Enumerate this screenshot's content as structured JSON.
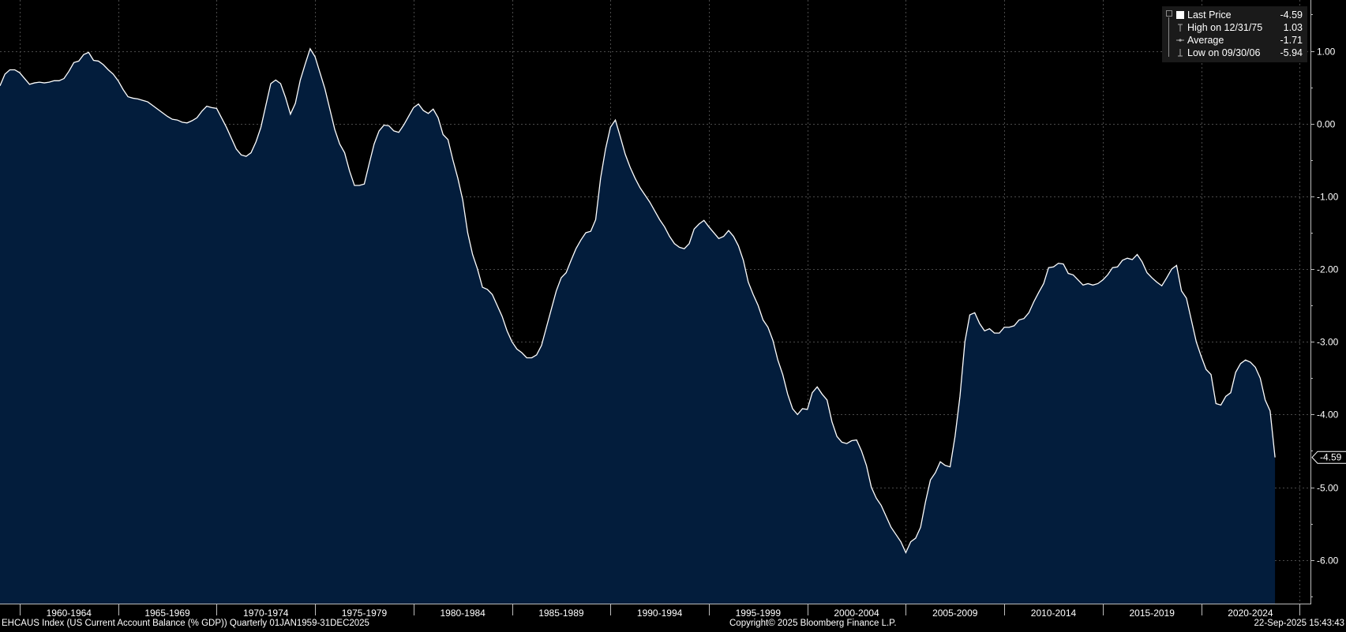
{
  "chart_data": {
    "type": "area",
    "ticker": "EHCAUS Index",
    "ylim": [
      -6.6,
      1.7
    ],
    "xlim": [
      1959.0,
      2025.55
    ],
    "y_ticks": [
      1,
      0,
      -1,
      -2,
      -3,
      -4,
      -5,
      -6
    ],
    "y_tick_labels": [
      "1.00",
      "0.00",
      "-1.00",
      "-2.00",
      "-3.00",
      "-4.00",
      "-5.00",
      "-6.00"
    ],
    "x_period_labels": [
      {
        "label": "1960-1964",
        "start": 1960,
        "end": 1965
      },
      {
        "label": "1965-1969",
        "start": 1965,
        "end": 1970
      },
      {
        "label": "1970-1974",
        "start": 1970,
        "end": 1975
      },
      {
        "label": "1975-1979",
        "start": 1975,
        "end": 1980
      },
      {
        "label": "1980-1984",
        "start": 1980,
        "end": 1985
      },
      {
        "label": "1985-1989",
        "start": 1985,
        "end": 1990
      },
      {
        "label": "1990-1994",
        "start": 1990,
        "end": 1995
      },
      {
        "label": "1995-1999",
        "start": 1995,
        "end": 2000
      },
      {
        "label": "2000-2004",
        "start": 2000,
        "end": 2005
      },
      {
        "label": "2005-2009",
        "start": 2005,
        "end": 2010
      },
      {
        "label": "2010-2014",
        "start": 2010,
        "end": 2015
      },
      {
        "label": "2015-2019",
        "start": 2015,
        "end": 2020
      },
      {
        "label": "2020-2024",
        "start": 2020,
        "end": 2025
      }
    ],
    "grid": true,
    "legend_position": "top-right",
    "last_value_label": "-4.59",
    "colors": {
      "background": "#000000",
      "fill": "#031d3c",
      "line": "#ffffff",
      "grid": "#4a4a4a",
      "legend_bg": "#1a1a1a"
    },
    "series": [
      {
        "name": "Last Price",
        "points": [
          [
            1959.0,
            0.52
          ],
          [
            1959.25,
            0.68
          ],
          [
            1959.5,
            0.74
          ],
          [
            1959.75,
            0.74
          ],
          [
            1960.0,
            0.7
          ],
          [
            1960.25,
            0.62
          ],
          [
            1960.5,
            0.54
          ],
          [
            1960.75,
            0.56
          ],
          [
            1961.0,
            0.57
          ],
          [
            1961.25,
            0.56
          ],
          [
            1961.5,
            0.57
          ],
          [
            1961.75,
            0.59
          ],
          [
            1962.0,
            0.59
          ],
          [
            1962.25,
            0.62
          ],
          [
            1962.5,
            0.72
          ],
          [
            1962.75,
            0.84
          ],
          [
            1963.0,
            0.86
          ],
          [
            1963.25,
            0.95
          ],
          [
            1963.5,
            0.98
          ],
          [
            1963.75,
            0.87
          ],
          [
            1964.0,
            0.86
          ],
          [
            1964.25,
            0.81
          ],
          [
            1964.5,
            0.74
          ],
          [
            1964.75,
            0.68
          ],
          [
            1965.0,
            0.59
          ],
          [
            1965.25,
            0.47
          ],
          [
            1965.5,
            0.37
          ],
          [
            1965.75,
            0.35
          ],
          [
            1966.0,
            0.34
          ],
          [
            1966.25,
            0.32
          ],
          [
            1966.5,
            0.3
          ],
          [
            1966.75,
            0.25
          ],
          [
            1967.0,
            0.2
          ],
          [
            1967.25,
            0.15
          ],
          [
            1967.5,
            0.1
          ],
          [
            1967.75,
            0.06
          ],
          [
            1968.0,
            0.05
          ],
          [
            1968.25,
            0.02
          ],
          [
            1968.5,
            0.01
          ],
          [
            1968.75,
            0.04
          ],
          [
            1969.0,
            0.08
          ],
          [
            1969.25,
            0.17
          ],
          [
            1969.5,
            0.24
          ],
          [
            1969.75,
            0.22
          ],
          [
            1970.0,
            0.21
          ],
          [
            1970.25,
            0.08
          ],
          [
            1970.5,
            -0.05
          ],
          [
            1970.75,
            -0.2
          ],
          [
            1971.0,
            -0.35
          ],
          [
            1971.25,
            -0.43
          ],
          [
            1971.5,
            -0.45
          ],
          [
            1971.75,
            -0.4
          ],
          [
            1972.0,
            -0.25
          ],
          [
            1972.25,
            -0.05
          ],
          [
            1972.5,
            0.25
          ],
          [
            1972.75,
            0.55
          ],
          [
            1973.0,
            0.6
          ],
          [
            1973.25,
            0.55
          ],
          [
            1973.5,
            0.36
          ],
          [
            1973.75,
            0.13
          ],
          [
            1974.0,
            0.28
          ],
          [
            1974.25,
            0.6
          ],
          [
            1974.5,
            0.82
          ],
          [
            1974.75,
            1.03
          ],
          [
            1975.0,
            0.92
          ],
          [
            1975.25,
            0.7
          ],
          [
            1975.5,
            0.48
          ],
          [
            1975.75,
            0.2
          ],
          [
            1976.0,
            -0.08
          ],
          [
            1976.25,
            -0.28
          ],
          [
            1976.5,
            -0.4
          ],
          [
            1976.75,
            -0.65
          ],
          [
            1977.0,
            -0.85
          ],
          [
            1977.25,
            -0.85
          ],
          [
            1977.5,
            -0.83
          ],
          [
            1977.75,
            -0.55
          ],
          [
            1978.0,
            -0.28
          ],
          [
            1978.25,
            -0.1
          ],
          [
            1978.5,
            -0.02
          ],
          [
            1978.75,
            -0.03
          ],
          [
            1979.0,
            -0.1
          ],
          [
            1979.25,
            -0.12
          ],
          [
            1979.5,
            -0.02
          ],
          [
            1979.75,
            0.1
          ],
          [
            1980.0,
            0.22
          ],
          [
            1980.25,
            0.27
          ],
          [
            1980.5,
            0.18
          ],
          [
            1980.75,
            0.14
          ],
          [
            1981.0,
            0.2
          ],
          [
            1981.25,
            0.08
          ],
          [
            1981.5,
            -0.15
          ],
          [
            1981.75,
            -0.22
          ],
          [
            1982.0,
            -0.5
          ],
          [
            1982.25,
            -0.75
          ],
          [
            1982.5,
            -1.05
          ],
          [
            1982.75,
            -1.5
          ],
          [
            1983.0,
            -1.8
          ],
          [
            1983.25,
            -2.0
          ],
          [
            1983.5,
            -2.25
          ],
          [
            1983.75,
            -2.28
          ],
          [
            1984.0,
            -2.35
          ],
          [
            1984.25,
            -2.5
          ],
          [
            1984.5,
            -2.65
          ],
          [
            1984.75,
            -2.85
          ],
          [
            1985.0,
            -3.0
          ],
          [
            1985.25,
            -3.1
          ],
          [
            1985.5,
            -3.15
          ],
          [
            1985.75,
            -3.22
          ],
          [
            1986.0,
            -3.22
          ],
          [
            1986.25,
            -3.18
          ],
          [
            1986.5,
            -3.05
          ],
          [
            1986.75,
            -2.8
          ],
          [
            1987.0,
            -2.55
          ],
          [
            1987.25,
            -2.3
          ],
          [
            1987.5,
            -2.12
          ],
          [
            1987.75,
            -2.05
          ],
          [
            1988.0,
            -1.88
          ],
          [
            1988.25,
            -1.72
          ],
          [
            1988.5,
            -1.6
          ],
          [
            1988.75,
            -1.5
          ],
          [
            1989.0,
            -1.48
          ],
          [
            1989.25,
            -1.32
          ],
          [
            1989.5,
            -0.75
          ],
          [
            1989.75,
            -0.35
          ],
          [
            1990.0,
            -0.05
          ],
          [
            1990.25,
            0.05
          ],
          [
            1990.5,
            -0.18
          ],
          [
            1990.75,
            -0.42
          ],
          [
            1991.0,
            -0.6
          ],
          [
            1991.25,
            -0.75
          ],
          [
            1991.5,
            -0.88
          ],
          [
            1991.75,
            -0.98
          ],
          [
            1992.0,
            -1.08
          ],
          [
            1992.25,
            -1.2
          ],
          [
            1992.5,
            -1.32
          ],
          [
            1992.75,
            -1.42
          ],
          [
            1993.0,
            -1.55
          ],
          [
            1993.25,
            -1.65
          ],
          [
            1993.5,
            -1.7
          ],
          [
            1993.75,
            -1.72
          ],
          [
            1994.0,
            -1.65
          ],
          [
            1994.25,
            -1.45
          ],
          [
            1994.5,
            -1.38
          ],
          [
            1994.75,
            -1.33
          ],
          [
            1995.0,
            -1.42
          ],
          [
            1995.25,
            -1.5
          ],
          [
            1995.5,
            -1.58
          ],
          [
            1995.75,
            -1.55
          ],
          [
            1996.0,
            -1.47
          ],
          [
            1996.25,
            -1.55
          ],
          [
            1996.5,
            -1.68
          ],
          [
            1996.75,
            -1.88
          ],
          [
            1997.0,
            -2.18
          ],
          [
            1997.25,
            -2.35
          ],
          [
            1997.5,
            -2.5
          ],
          [
            1997.75,
            -2.7
          ],
          [
            1998.0,
            -2.8
          ],
          [
            1998.25,
            -2.98
          ],
          [
            1998.5,
            -3.25
          ],
          [
            1998.75,
            -3.45
          ],
          [
            1999.0,
            -3.72
          ],
          [
            1999.25,
            -3.92
          ],
          [
            1999.5,
            -4.0
          ],
          [
            1999.75,
            -3.92
          ],
          [
            2000.0,
            -3.93
          ],
          [
            2000.25,
            -3.7
          ],
          [
            2000.5,
            -3.62
          ],
          [
            2000.75,
            -3.72
          ],
          [
            2001.0,
            -3.8
          ],
          [
            2001.25,
            -4.1
          ],
          [
            2001.5,
            -4.3
          ],
          [
            2001.75,
            -4.38
          ],
          [
            2002.0,
            -4.4
          ],
          [
            2002.25,
            -4.36
          ],
          [
            2002.5,
            -4.35
          ],
          [
            2002.75,
            -4.5
          ],
          [
            2003.0,
            -4.7
          ],
          [
            2003.25,
            -5.0
          ],
          [
            2003.5,
            -5.15
          ],
          [
            2003.75,
            -5.25
          ],
          [
            2004.0,
            -5.4
          ],
          [
            2004.25,
            -5.55
          ],
          [
            2004.5,
            -5.65
          ],
          [
            2004.75,
            -5.75
          ],
          [
            2005.0,
            -5.9
          ],
          [
            2005.25,
            -5.75
          ],
          [
            2005.5,
            -5.7
          ],
          [
            2005.75,
            -5.55
          ],
          [
            2006.0,
            -5.2
          ],
          [
            2006.25,
            -4.9
          ],
          [
            2006.5,
            -4.8
          ],
          [
            2006.75,
            -4.65
          ],
          [
            2007.0,
            -4.7
          ],
          [
            2007.25,
            -4.72
          ],
          [
            2007.5,
            -4.3
          ],
          [
            2007.75,
            -3.75
          ],
          [
            2008.0,
            -3.0
          ],
          [
            2008.25,
            -2.63
          ],
          [
            2008.5,
            -2.6
          ],
          [
            2008.75,
            -2.75
          ],
          [
            2009.0,
            -2.85
          ],
          [
            2009.25,
            -2.82
          ],
          [
            2009.5,
            -2.88
          ],
          [
            2009.75,
            -2.88
          ],
          [
            2010.0,
            -2.8
          ],
          [
            2010.25,
            -2.8
          ],
          [
            2010.5,
            -2.78
          ],
          [
            2010.75,
            -2.7
          ],
          [
            2011.0,
            -2.68
          ],
          [
            2011.25,
            -2.6
          ],
          [
            2011.5,
            -2.45
          ],
          [
            2011.75,
            -2.32
          ],
          [
            2012.0,
            -2.2
          ],
          [
            2012.25,
            -1.98
          ],
          [
            2012.5,
            -1.97
          ],
          [
            2012.75,
            -1.92
          ],
          [
            2013.0,
            -1.93
          ],
          [
            2013.25,
            -2.06
          ],
          [
            2013.5,
            -2.08
          ],
          [
            2013.75,
            -2.15
          ],
          [
            2014.0,
            -2.22
          ],
          [
            2014.25,
            -2.2
          ],
          [
            2014.5,
            -2.22
          ],
          [
            2014.75,
            -2.2
          ],
          [
            2015.0,
            -2.15
          ],
          [
            2015.25,
            -2.08
          ],
          [
            2015.5,
            -1.98
          ],
          [
            2015.75,
            -1.97
          ],
          [
            2016.0,
            -1.88
          ],
          [
            2016.25,
            -1.85
          ],
          [
            2016.5,
            -1.87
          ],
          [
            2016.75,
            -1.8
          ],
          [
            2017.0,
            -1.9
          ],
          [
            2017.25,
            -2.05
          ],
          [
            2017.5,
            -2.12
          ],
          [
            2017.75,
            -2.18
          ],
          [
            2018.0,
            -2.23
          ],
          [
            2018.25,
            -2.12
          ],
          [
            2018.5,
            -2.0
          ],
          [
            2018.75,
            -1.95
          ],
          [
            2019.0,
            -2.3
          ],
          [
            2019.25,
            -2.4
          ],
          [
            2019.5,
            -2.7
          ],
          [
            2019.75,
            -3.0
          ],
          [
            2020.0,
            -3.2
          ],
          [
            2020.25,
            -3.38
          ],
          [
            2020.5,
            -3.45
          ],
          [
            2020.75,
            -3.85
          ],
          [
            2021.0,
            -3.87
          ],
          [
            2021.25,
            -3.75
          ],
          [
            2021.5,
            -3.7
          ],
          [
            2021.75,
            -3.42
          ],
          [
            2022.0,
            -3.3
          ],
          [
            2022.25,
            -3.25
          ],
          [
            2022.5,
            -3.28
          ],
          [
            2022.75,
            -3.35
          ],
          [
            2023.0,
            -3.5
          ],
          [
            2023.25,
            -3.8
          ],
          [
            2023.5,
            -3.95
          ],
          [
            2023.75,
            -4.59
          ]
        ]
      }
    ]
  },
  "legend": {
    "rows": [
      {
        "label": "Last Price",
        "value": "-4.59"
      },
      {
        "label": "High on 12/31/75",
        "value": "1.03"
      },
      {
        "label": "Average",
        "value": "-1.71"
      },
      {
        "label": "Low on 09/30/06",
        "value": "-5.94"
      }
    ]
  },
  "footer": {
    "left": "EHCAUS Index (US Current Account Balance (% GDP))  Quarterly 01JAN1959-31DEC2025",
    "center": "Copyright© 2025 Bloomberg Finance L.P.",
    "right": "22-Sep-2025 15:43:43"
  }
}
